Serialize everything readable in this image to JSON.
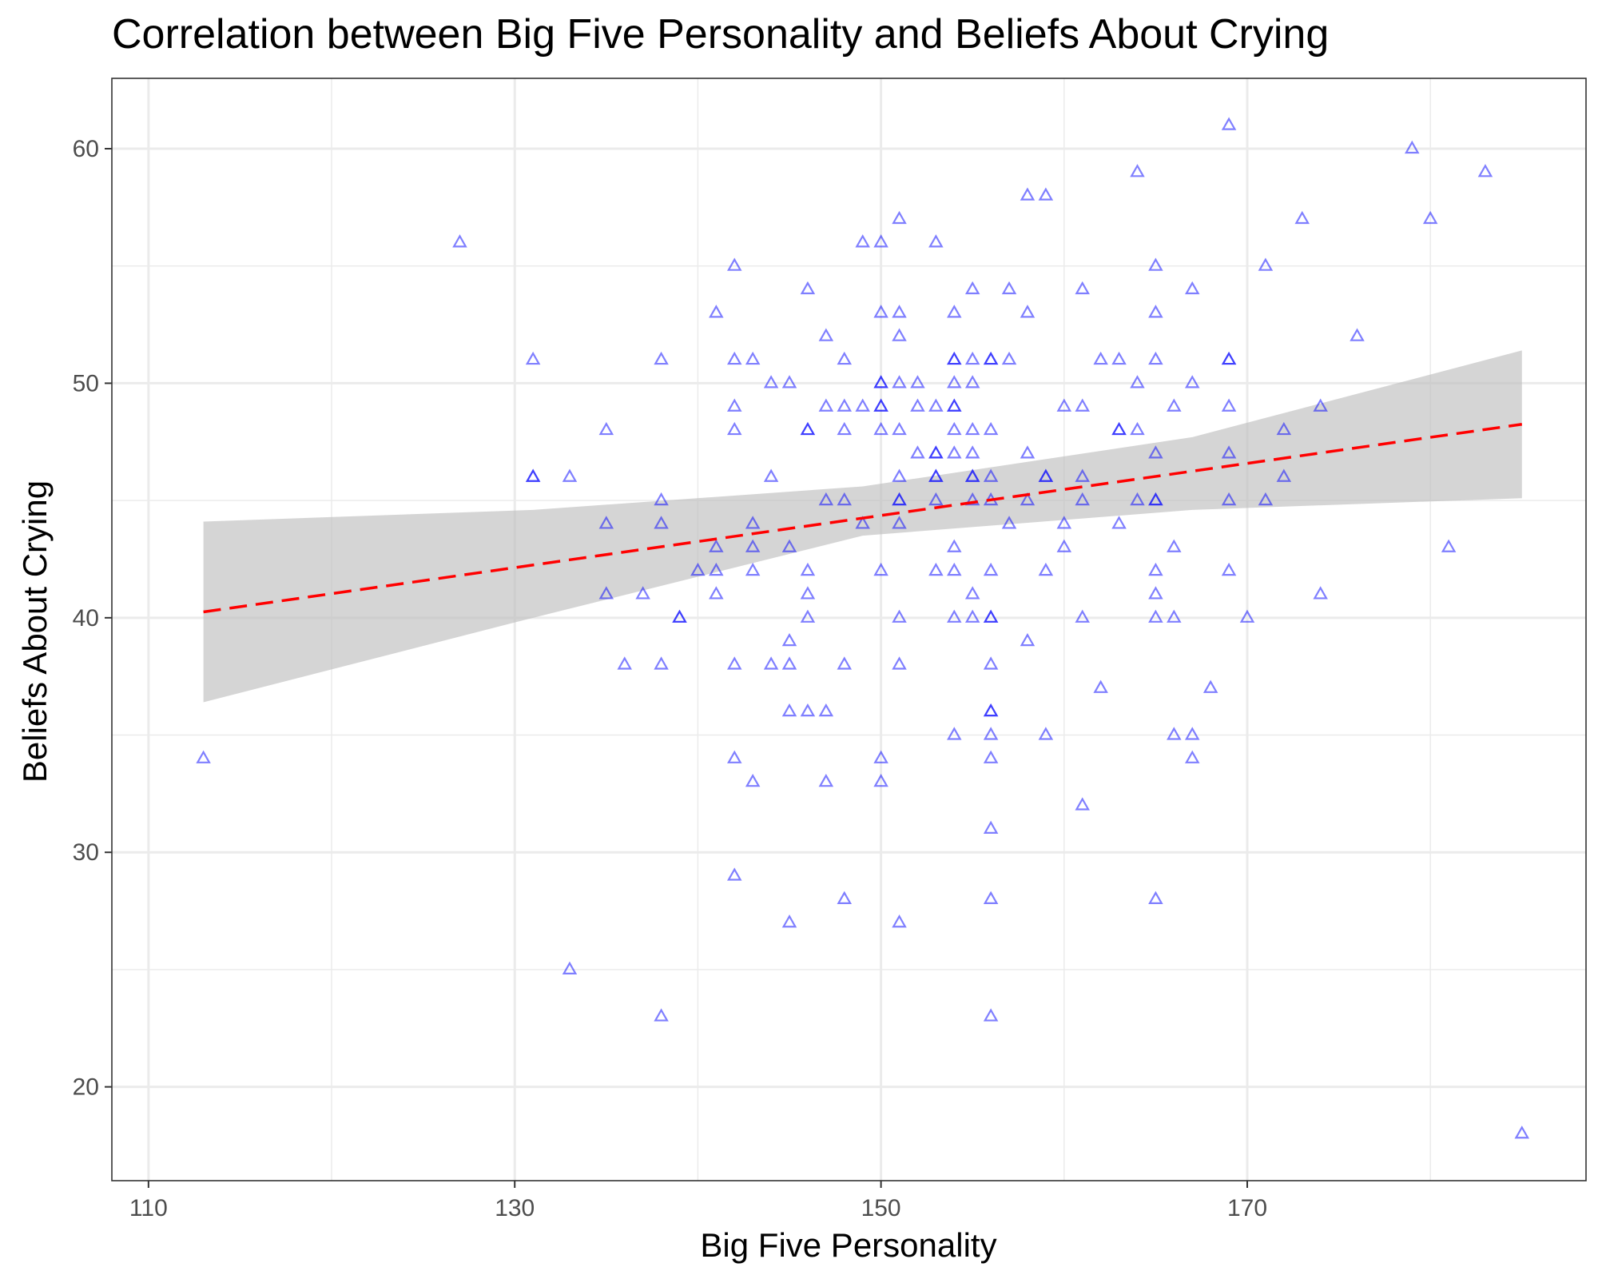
{
  "chart_data": {
    "type": "scatter",
    "title": "Correlation between Big Five Personality and Beliefs About Crying",
    "xlabel": "Big Five Personality",
    "ylabel": "Beliefs About Crying",
    "xlim": [
      108.0,
      188.5
    ],
    "ylim": [
      16.0,
      63.0
    ],
    "x_ticks": [
      110,
      130,
      150,
      170
    ],
    "y_ticks": [
      20,
      30,
      40,
      50,
      60
    ],
    "x_minor_ticks": [
      120,
      140,
      160,
      180
    ],
    "y_minor_ticks": [
      25,
      35,
      45,
      55
    ],
    "grid": true,
    "legend": "none",
    "colors": {
      "points": "#0000ff",
      "trend_line": "#ff0000",
      "confidence_band": "#bebebe",
      "grid": "#ebebeb",
      "panel_border": "#333333"
    },
    "marker": "open-triangle",
    "trend": {
      "method": "linear",
      "style": "dashed",
      "x": [
        113,
        185
      ],
      "y": [
        40.25,
        48.25
      ],
      "ci_x": [
        113,
        131,
        149,
        167,
        185
      ],
      "ci_lower": [
        36.4,
        40.0,
        43.5,
        44.6,
        45.1
      ],
      "ci_upper": [
        44.1,
        44.6,
        45.6,
        47.7,
        51.4
      ]
    },
    "points": [
      [
        113,
        34
      ],
      [
        127,
        56
      ],
      [
        131,
        51
      ],
      [
        131,
        46
      ],
      [
        131,
        46
      ],
      [
        133,
        46
      ],
      [
        133,
        25
      ],
      [
        135,
        48
      ],
      [
        135,
        44
      ],
      [
        135,
        41
      ],
      [
        136,
        38
      ],
      [
        137,
        41
      ],
      [
        138,
        51
      ],
      [
        138,
        45
      ],
      [
        138,
        44
      ],
      [
        138,
        38
      ],
      [
        138,
        23
      ],
      [
        139,
        40
      ],
      [
        139,
        40
      ],
      [
        140,
        42
      ],
      [
        141,
        53
      ],
      [
        141,
        43
      ],
      [
        141,
        42
      ],
      [
        141,
        41
      ],
      [
        142,
        55
      ],
      [
        142,
        51
      ],
      [
        142,
        49
      ],
      [
        142,
        48
      ],
      [
        142,
        38
      ],
      [
        142,
        34
      ],
      [
        142,
        29
      ],
      [
        143,
        51
      ],
      [
        143,
        44
      ],
      [
        143,
        43
      ],
      [
        143,
        42
      ],
      [
        143,
        33
      ],
      [
        144,
        50
      ],
      [
        144,
        46
      ],
      [
        144,
        38
      ],
      [
        145,
        50
      ],
      [
        145,
        43
      ],
      [
        145,
        39
      ],
      [
        145,
        38
      ],
      [
        145,
        36
      ],
      [
        145,
        27
      ],
      [
        146,
        54
      ],
      [
        146,
        48
      ],
      [
        146,
        48
      ],
      [
        146,
        42
      ],
      [
        146,
        41
      ],
      [
        146,
        40
      ],
      [
        146,
        36
      ],
      [
        147,
        52
      ],
      [
        147,
        49
      ],
      [
        147,
        45
      ],
      [
        147,
        36
      ],
      [
        147,
        33
      ],
      [
        148,
        51
      ],
      [
        148,
        49
      ],
      [
        148,
        48
      ],
      [
        148,
        45
      ],
      [
        148,
        38
      ],
      [
        148,
        28
      ],
      [
        149,
        56
      ],
      [
        149,
        49
      ],
      [
        149,
        44
      ],
      [
        150,
        56
      ],
      [
        150,
        53
      ],
      [
        150,
        50
      ],
      [
        150,
        50
      ],
      [
        150,
        49
      ],
      [
        150,
        49
      ],
      [
        150,
        48
      ],
      [
        150,
        42
      ],
      [
        150,
        34
      ],
      [
        150,
        33
      ],
      [
        151,
        57
      ],
      [
        151,
        53
      ],
      [
        151,
        52
      ],
      [
        151,
        50
      ],
      [
        151,
        48
      ],
      [
        151,
        46
      ],
      [
        151,
        45
      ],
      [
        151,
        45
      ],
      [
        151,
        44
      ],
      [
        151,
        40
      ],
      [
        151,
        38
      ],
      [
        151,
        27
      ],
      [
        152,
        50
      ],
      [
        152,
        49
      ],
      [
        152,
        47
      ],
      [
        153,
        56
      ],
      [
        153,
        49
      ],
      [
        153,
        47
      ],
      [
        153,
        47
      ],
      [
        153,
        46
      ],
      [
        153,
        46
      ],
      [
        153,
        45
      ],
      [
        153,
        42
      ],
      [
        154,
        53
      ],
      [
        154,
        51
      ],
      [
        154,
        51
      ],
      [
        154,
        50
      ],
      [
        154,
        49
      ],
      [
        154,
        49
      ],
      [
        154,
        48
      ],
      [
        154,
        47
      ],
      [
        154,
        43
      ],
      [
        154,
        42
      ],
      [
        154,
        40
      ],
      [
        154,
        35
      ],
      [
        155,
        54
      ],
      [
        155,
        51
      ],
      [
        155,
        50
      ],
      [
        155,
        48
      ],
      [
        155,
        47
      ],
      [
        155,
        46
      ],
      [
        155,
        46
      ],
      [
        155,
        45
      ],
      [
        155,
        41
      ],
      [
        155,
        40
      ],
      [
        156,
        51
      ],
      [
        156,
        51
      ],
      [
        156,
        48
      ],
      [
        156,
        46
      ],
      [
        156,
        45
      ],
      [
        156,
        42
      ],
      [
        156,
        40
      ],
      [
        156,
        40
      ],
      [
        156,
        38
      ],
      [
        156,
        36
      ],
      [
        156,
        36
      ],
      [
        156,
        35
      ],
      [
        156,
        34
      ],
      [
        156,
        31
      ],
      [
        156,
        28
      ],
      [
        156,
        23
      ],
      [
        157,
        54
      ],
      [
        157,
        51
      ],
      [
        157,
        44
      ],
      [
        158,
        58
      ],
      [
        158,
        53
      ],
      [
        158,
        47
      ],
      [
        158,
        45
      ],
      [
        158,
        39
      ],
      [
        159,
        58
      ],
      [
        159,
        46
      ],
      [
        159,
        46
      ],
      [
        159,
        42
      ],
      [
        159,
        35
      ],
      [
        160,
        49
      ],
      [
        160,
        44
      ],
      [
        160,
        43
      ],
      [
        161,
        54
      ],
      [
        161,
        49
      ],
      [
        161,
        46
      ],
      [
        161,
        45
      ],
      [
        161,
        40
      ],
      [
        161,
        32
      ],
      [
        162,
        51
      ],
      [
        162,
        37
      ],
      [
        163,
        51
      ],
      [
        163,
        48
      ],
      [
        163,
        48
      ],
      [
        163,
        44
      ],
      [
        164,
        59
      ],
      [
        164,
        50
      ],
      [
        164,
        48
      ],
      [
        164,
        45
      ],
      [
        165,
        55
      ],
      [
        165,
        53
      ],
      [
        165,
        51
      ],
      [
        165,
        47
      ],
      [
        165,
        45
      ],
      [
        165,
        45
      ],
      [
        165,
        42
      ],
      [
        165,
        41
      ],
      [
        165,
        40
      ],
      [
        165,
        28
      ],
      [
        166,
        49
      ],
      [
        166,
        43
      ],
      [
        166,
        40
      ],
      [
        166,
        35
      ],
      [
        167,
        54
      ],
      [
        167,
        50
      ],
      [
        167,
        35
      ],
      [
        167,
        34
      ],
      [
        168,
        37
      ],
      [
        169,
        61
      ],
      [
        169,
        51
      ],
      [
        169,
        51
      ],
      [
        169,
        49
      ],
      [
        169,
        47
      ],
      [
        169,
        45
      ],
      [
        169,
        42
      ],
      [
        170,
        40
      ],
      [
        171,
        55
      ],
      [
        171,
        45
      ],
      [
        172,
        48
      ],
      [
        172,
        46
      ],
      [
        173,
        57
      ],
      [
        174,
        49
      ],
      [
        174,
        41
      ],
      [
        176,
        52
      ],
      [
        179,
        60
      ],
      [
        180,
        57
      ],
      [
        181,
        43
      ],
      [
        183,
        59
      ],
      [
        185,
        18
      ]
    ]
  }
}
